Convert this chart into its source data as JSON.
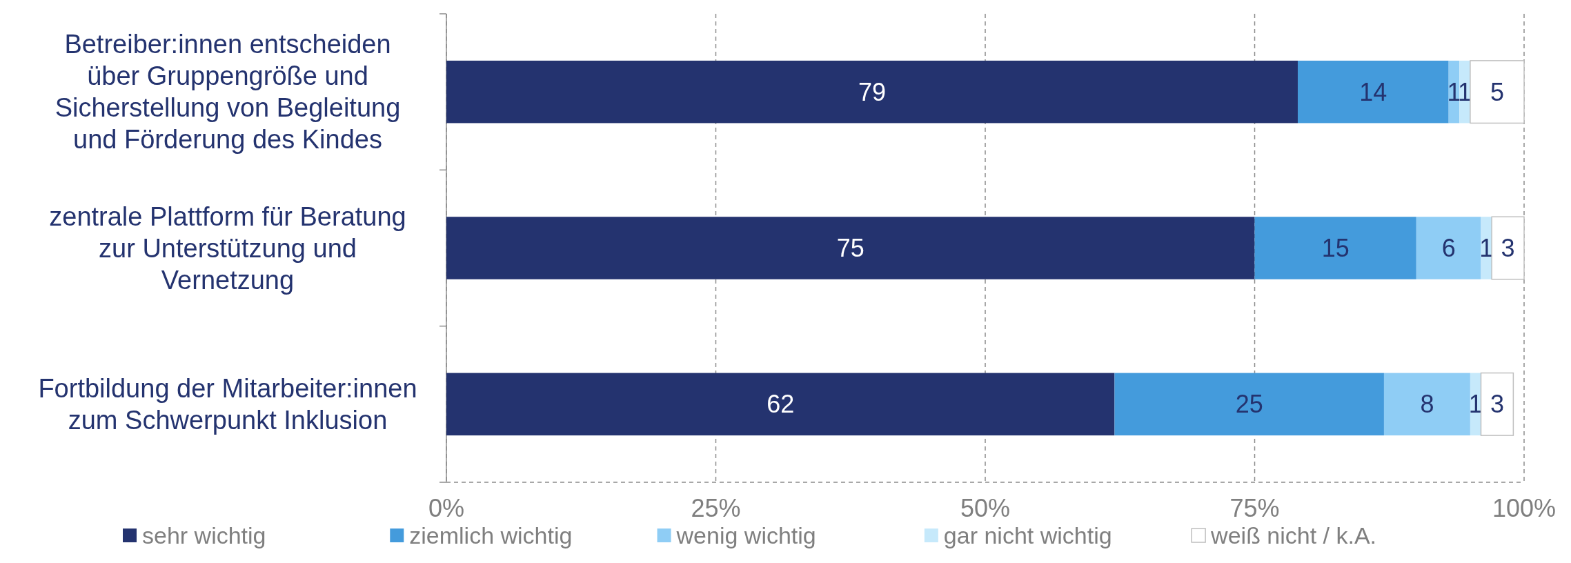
{
  "chart_data": {
    "type": "bar",
    "orientation": "horizontal",
    "stacked": true,
    "categories": [
      "Betreiber:innen entscheiden über Gruppengröße und Sicherstellung von Begleitung und Förderung des Kindes",
      "zentrale Plattform für Beratung zur Unterstützung und Vernetzung",
      "Fortbildung der Mitarbeiter:innen zum Schwerpunkt Inklusion"
    ],
    "series": [
      {
        "name": "sehr wichtig",
        "color": "#24336f",
        "values": [
          79,
          75,
          62
        ]
      },
      {
        "name": "ziemlich wichtig",
        "color": "#449bdc",
        "values": [
          14,
          15,
          25
        ]
      },
      {
        "name": "wenig wichtig",
        "color": "#8fcdf5",
        "values": [
          1,
          6,
          8
        ]
      },
      {
        "name": "gar nicht wichtig",
        "color": "#c6e9fb",
        "values": [
          1,
          1,
          1
        ]
      },
      {
        "name": "weiß nicht / k.A.",
        "color": "#ffffff",
        "values": [
          5,
          3,
          3
        ]
      }
    ],
    "xlim": [
      0,
      100
    ],
    "xticks": [
      {
        "value": 0,
        "label": "0%"
      },
      {
        "value": 25,
        "label": "25%"
      },
      {
        "value": 50,
        "label": "50%"
      },
      {
        "value": 75,
        "label": "75%"
      },
      {
        "value": 100,
        "label": "100%"
      }
    ],
    "grid": "x",
    "legend": "bottom",
    "data_labels": true
  }
}
